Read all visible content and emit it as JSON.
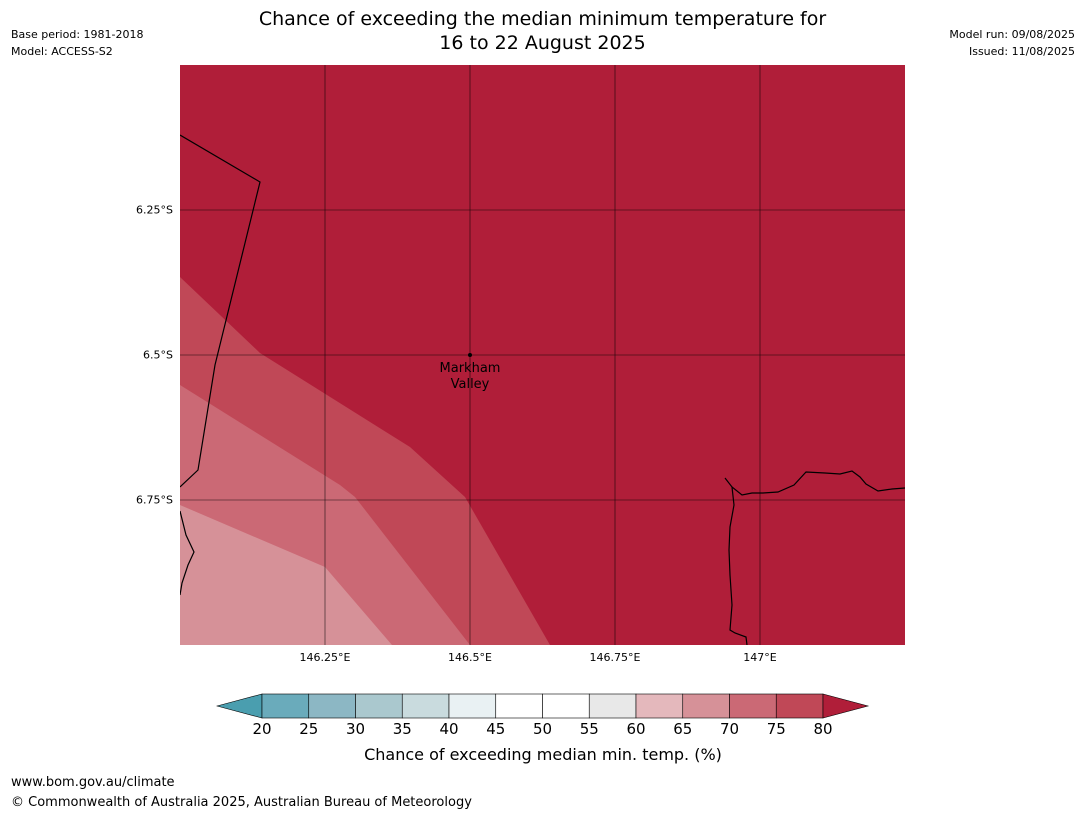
{
  "header": {
    "base_period": "Base period: 1981-2018",
    "model": "Model: ACCESS-S2",
    "model_run": "Model run: 09/08/2025",
    "issued": "Issued: 11/08/2025"
  },
  "title": {
    "line1": "Chance of exceeding the median minimum temperature for",
    "line2": "16 to 22 August 2025"
  },
  "map": {
    "place_label_line1": "Markham",
    "place_label_line2": "Valley",
    "lat_labels": [
      "6.25°S",
      "6.5°S",
      "6.75°S"
    ],
    "lon_labels": [
      "146.25°E",
      "146.5°E",
      "146.75°E",
      "147°E"
    ],
    "region_colors": {
      "band_80_plus": "#b01e39",
      "band_75_80": "#c04857",
      "band_70_75": "#cb6975",
      "band_65_70": "#d69198"
    }
  },
  "colorbar": {
    "ticks": [
      "20",
      "25",
      "30",
      "35",
      "40",
      "45",
      "50",
      "55",
      "60",
      "65",
      "70",
      "75",
      "80"
    ],
    "label": "Chance of exceeding median min. temp. (%)",
    "under_color": "#4a9eaf",
    "over_color": "#b01e39",
    "segment_colors": [
      "#6aabbb",
      "#8cb7c4",
      "#aac8ce",
      "#c9dbde",
      "#e9f1f3",
      "#ffffff",
      "#ffffff",
      "#e8e8e8",
      "#e4b8bc",
      "#d69198",
      "#cb6975",
      "#c04857"
    ]
  },
  "footer": {
    "url": "www.bom.gov.au/climate",
    "copyright": "© Commonwealth of Australia 2025, Australian Bureau of Meteorology"
  }
}
